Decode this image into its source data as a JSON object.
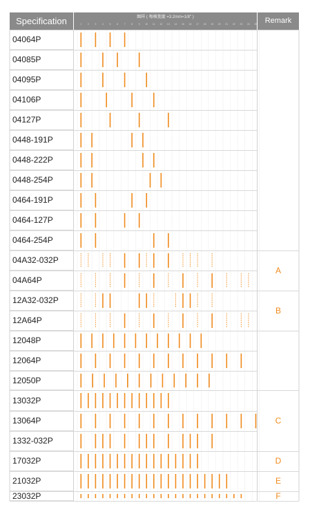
{
  "header": {
    "specification_label": "Specification",
    "caption": "图样 ( 每格宽度 =3.2mm=1/8\" )",
    "remark_label": "Remark",
    "ticks": [
      "1",
      "2",
      "3",
      "4",
      "5",
      "6",
      "7",
      "8",
      "9",
      "10",
      "11",
      "12",
      "13",
      "14",
      "15",
      "16",
      "17",
      "18",
      "19",
      "20",
      "21",
      "22",
      "23",
      "24",
      "25"
    ]
  },
  "colors": {
    "accent": "#f08a1c",
    "header_bg": "#8a8a8a",
    "grid": "#dcdcdc"
  },
  "rows": [
    {
      "spec": "04064P",
      "solid": [
        1,
        3,
        5,
        7
      ],
      "dashed": []
    },
    {
      "spec": "04085P",
      "solid": [
        1,
        4,
        6,
        9
      ],
      "dashed": []
    },
    {
      "spec": "04095P",
      "solid": [
        1,
        4,
        7,
        10
      ],
      "dashed": []
    },
    {
      "spec": "04106P",
      "solid": [
        1,
        4.5,
        8,
        11
      ],
      "dashed": []
    },
    {
      "spec": "04127P",
      "solid": [
        1,
        5,
        9,
        13
      ],
      "dashed": []
    },
    {
      "spec": "0448-191P",
      "solid": [
        1,
        2.5,
        8,
        9.5
      ],
      "dashed": []
    },
    {
      "spec": "0448-222P",
      "solid": [
        1,
        2.5,
        9.5,
        11
      ],
      "dashed": []
    },
    {
      "spec": "0448-254P",
      "solid": [
        1,
        2.5,
        10.5,
        12
      ],
      "dashed": []
    },
    {
      "spec": "0464-191P",
      "solid": [
        1,
        3,
        8,
        10
      ],
      "dashed": []
    },
    {
      "spec": "0464-127P",
      "solid": [
        1,
        3,
        7,
        9
      ],
      "dashed": []
    },
    {
      "spec": "0464-254P",
      "solid": [
        1,
        3,
        11,
        13
      ],
      "dashed": []
    },
    {
      "spec": "04A32-032P",
      "solid": [
        7,
        9,
        11,
        13
      ],
      "dashed": [
        1,
        2,
        4,
        5,
        10,
        15,
        16,
        17,
        19
      ]
    },
    {
      "spec": "04A64P",
      "solid": [
        7,
        11,
        15,
        19
      ],
      "dashed": [
        1,
        3,
        5,
        9,
        13,
        17,
        21,
        23,
        24
      ]
    },
    {
      "spec": "12A32-032P",
      "solid": [
        4,
        5,
        9,
        10,
        15,
        16
      ],
      "dashed": [
        1,
        3,
        11,
        14,
        17,
        19
      ]
    },
    {
      "spec": "12A64P",
      "solid": [
        7,
        11,
        15,
        19
      ],
      "dashed": [
        1,
        3,
        5,
        9,
        13,
        17,
        21,
        23,
        24
      ]
    },
    {
      "spec": "12048P",
      "solid": [
        1,
        2.5,
        4,
        5.5,
        7,
        8.5,
        10,
        11.5,
        13,
        14.5,
        16,
        17.5
      ],
      "dashed": []
    },
    {
      "spec": "12064P",
      "solid": [
        1,
        3,
        5,
        7,
        9,
        11,
        13,
        15,
        17,
        19,
        21,
        23
      ],
      "dashed": []
    },
    {
      "spec": "12050P",
      "solid": [
        1,
        2.6,
        4.2,
        5.8,
        7.4,
        9,
        10.6,
        12.2,
        13.8,
        15.4,
        17,
        18.6
      ],
      "dashed": []
    },
    {
      "spec": "13032P",
      "solid": [
        1,
        2,
        3,
        4,
        5,
        6,
        7,
        8,
        9,
        10,
        11,
        12,
        13
      ],
      "dashed": []
    },
    {
      "spec": "13064P",
      "solid": [
        1,
        3,
        5,
        7,
        9,
        11,
        13,
        15,
        17,
        19,
        21,
        23,
        25
      ],
      "dashed": []
    },
    {
      "spec": "1332-032P",
      "solid": [
        1,
        3,
        4,
        5,
        7,
        9,
        10,
        11,
        13,
        15,
        16,
        17,
        19
      ],
      "dashed": []
    },
    {
      "spec": "17032P",
      "solid": [
        1,
        2,
        3,
        4,
        5,
        6,
        7,
        8,
        9,
        10,
        11,
        12,
        13,
        14,
        15,
        16,
        17
      ],
      "dashed": []
    },
    {
      "spec": "21032P",
      "solid": [
        1,
        2,
        3,
        4,
        5,
        6,
        7,
        8,
        9,
        10,
        11,
        12,
        13,
        14,
        15,
        16,
        17,
        18,
        19,
        20,
        21
      ],
      "dashed": []
    },
    {
      "spec": "23032P",
      "solid": [
        1,
        2,
        3,
        4,
        5,
        6,
        7,
        8,
        9,
        10,
        11,
        12,
        13,
        14,
        15,
        16,
        17,
        18,
        19,
        20,
        21,
        22,
        23
      ],
      "dashed": []
    }
  ],
  "remarks": [
    {
      "label": "A",
      "from": 11,
      "to": 12
    },
    {
      "label": "B",
      "from": 13,
      "to": 14
    },
    {
      "label": "C",
      "from": 18,
      "to": 20
    },
    {
      "label": "D",
      "from": 21,
      "to": 21
    },
    {
      "label": "E",
      "from": 22,
      "to": 22
    },
    {
      "label": "F",
      "from": 23,
      "to": 23
    }
  ]
}
